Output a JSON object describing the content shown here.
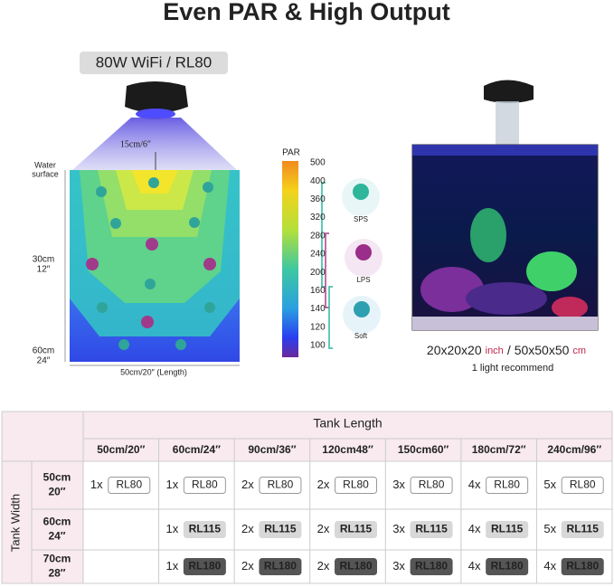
{
  "title": "Even PAR & High Output",
  "light_diagram": {
    "model": "80W WiFi / RL80",
    "distance": "15cm/6″",
    "water_surface": [
      "Water",
      "surface"
    ],
    "depths": [
      [
        "30cm",
        "12″"
      ],
      [
        "60cm",
        "24″"
      ]
    ],
    "length": "50cm/20″ (Length)"
  },
  "par_scale": {
    "title": "PAR",
    "ticks": [
      500,
      400,
      360,
      320,
      280,
      240,
      200,
      160,
      140,
      120,
      100
    ]
  },
  "corals": [
    "SPS",
    "LPS",
    "Soft"
  ],
  "tank_photo": {
    "size_inch": "20x20x20",
    "unit_inch": "inch",
    "separator": "/",
    "size_cm": "50x50x50",
    "unit_cm": "cm",
    "recommendation": "1 light recommend"
  },
  "table": {
    "title": "Tank Length",
    "row_header": "Tank Width",
    "columns": [
      "50cm/20″",
      "60cm/24″",
      "90cm/36″",
      "120cm48″",
      "150cm60″",
      "180cm/72″",
      "240cm/96″"
    ],
    "rows": [
      {
        "width": [
          "50cm",
          "20″"
        ],
        "cells": [
          {
            "count": "1x",
            "model": "RL80"
          },
          {
            "count": "1x",
            "model": "RL80"
          },
          {
            "count": "2x",
            "model": "RL80"
          },
          {
            "count": "2x",
            "model": "RL80"
          },
          {
            "count": "3x",
            "model": "RL80"
          },
          {
            "count": "4x",
            "model": "RL80"
          },
          {
            "count": "5x",
            "model": "RL80"
          }
        ]
      },
      {
        "width": [
          "60cm",
          "24″"
        ],
        "cells": [
          null,
          {
            "count": "1x",
            "model": "RL115"
          },
          {
            "count": "2x",
            "model": "RL115"
          },
          {
            "count": "2x",
            "model": "RL115"
          },
          {
            "count": "3x",
            "model": "RL115"
          },
          {
            "count": "4x",
            "model": "RL115"
          },
          {
            "count": "5x",
            "model": "RL115"
          }
        ]
      },
      {
        "width": [
          "70cm",
          "28″"
        ],
        "cells": [
          null,
          {
            "count": "1x",
            "model": "RL180"
          },
          {
            "count": "2x",
            "model": "RL180"
          },
          {
            "count": "2x",
            "model": "RL180"
          },
          {
            "count": "3x",
            "model": "RL180"
          },
          {
            "count": "4x",
            "model": "RL180"
          },
          {
            "count": "4x",
            "model": "RL180"
          }
        ]
      }
    ]
  }
}
